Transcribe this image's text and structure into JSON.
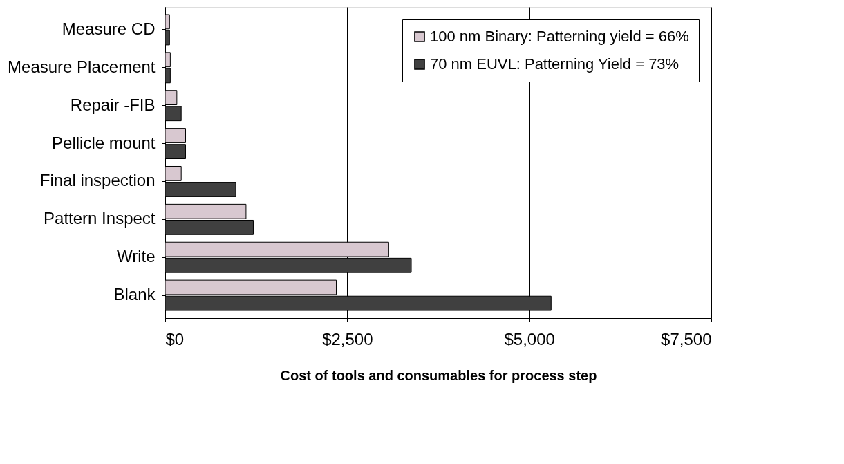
{
  "chart_data": {
    "type": "bar",
    "orientation": "horizontal",
    "xlabel": "Cost of tools and consumables for process step",
    "categories": [
      "Measure CD",
      "Measure Placement",
      "Repair -FIB",
      "Pellicle mount",
      "Final inspection",
      "Pattern Inspect",
      "Write",
      "Blank"
    ],
    "series": [
      {
        "name": "100 nm Binary: Patterning yield = 66%",
        "color": "#d8c8d0",
        "values": [
          60,
          70,
          160,
          280,
          220,
          1110,
          3070,
          2350
        ]
      },
      {
        "name": "70 nm EUVL: Patterning Yield = 73%",
        "color": "#404040",
        "values": [
          60,
          70,
          220,
          280,
          970,
          1210,
          3380,
          5300
        ]
      }
    ],
    "xlim": [
      0,
      7500
    ],
    "xticks": [
      {
        "value": 0,
        "label": "$0"
      },
      {
        "value": 2500,
        "label": "$2,500"
      },
      {
        "value": 5000,
        "label": "$5,000"
      },
      {
        "value": 7500,
        "label": "$7,500"
      }
    ],
    "grid": "x",
    "legend": "top right"
  }
}
